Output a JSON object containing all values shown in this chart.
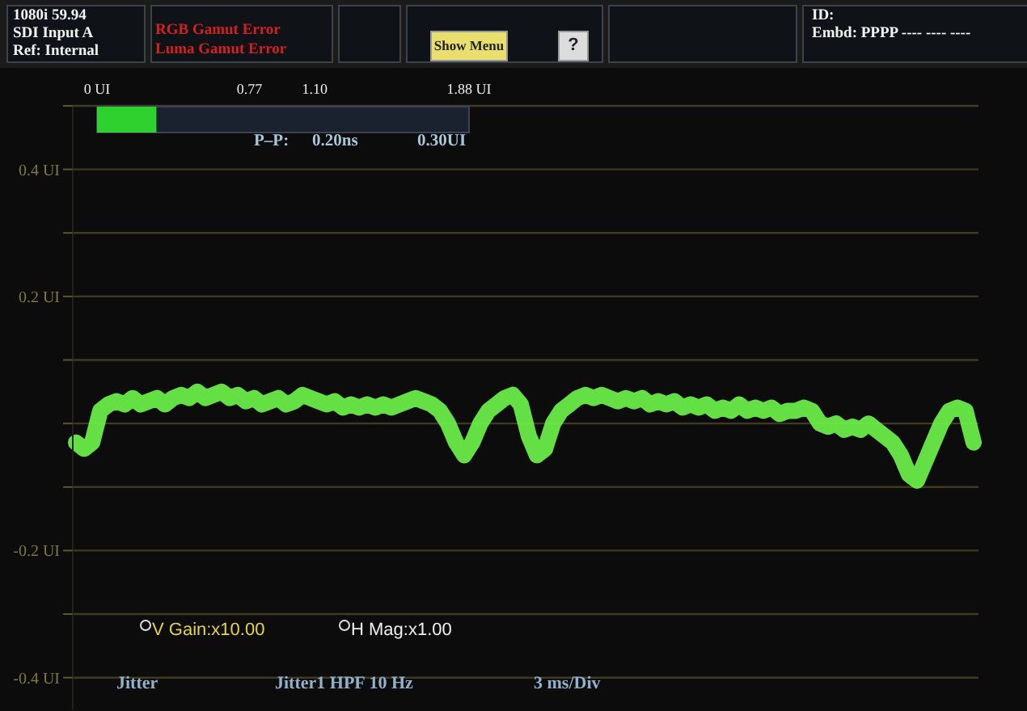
{
  "chart_data": [
    {
      "type": "bar",
      "orientation": "horizontal",
      "categories": [
        null
      ],
      "values": [
        0.3
      ],
      "color": "#2fd12f",
      "xlim": [
        0,
        1.88
      ],
      "xticks": [
        {
          "value": 0,
          "label": "0 UI"
        },
        0.77,
        {
          "value": 1.1,
          "label": "1.10"
        },
        {
          "value": 1.88,
          "label": "1.88 UI"
        }
      ],
      "tick_labels": "x",
      "annotations": [
        "P–P:",
        "0.20ns",
        "0.30UI"
      ]
    },
    {
      "type": "line",
      "categories": [
        null,
        null,
        null,
        null,
        null,
        null,
        null,
        null,
        null,
        null,
        null,
        null,
        null,
        null,
        null,
        null,
        null,
        null,
        null,
        null,
        null,
        null,
        null,
        null,
        null,
        null,
        null,
        null,
        null,
        null,
        null,
        null,
        null,
        null,
        null,
        null,
        null,
        null,
        null,
        null,
        null,
        null,
        null,
        null,
        null,
        null,
        null,
        null,
        null,
        null,
        null,
        null,
        null,
        null,
        null,
        null,
        null,
        null,
        null,
        null,
        null,
        null,
        null,
        null,
        null,
        null,
        null,
        null,
        null,
        null,
        null,
        null,
        null,
        null,
        null,
        null,
        null,
        null,
        null,
        null,
        null,
        null,
        null,
        null,
        null,
        null,
        null,
        null,
        null,
        null,
        null,
        null,
        null,
        null,
        null,
        null,
        null,
        null,
        null,
        null,
        null,
        null,
        null,
        null,
        null,
        null,
        null,
        null,
        null,
        null,
        null,
        null
      ],
      "series": [
        {
          "color": "#6cf24a",
          "values": [
            -0.03,
            -0.04,
            -0.03,
            0.02,
            0.03,
            0.035,
            0.03,
            0.04,
            0.03,
            0.035,
            0.04,
            0.03,
            0.04,
            0.045,
            0.04,
            0.05,
            0.04,
            0.045,
            0.05,
            0.04,
            0.045,
            0.035,
            0.04,
            0.03,
            0.035,
            0.04,
            0.03,
            0.035,
            0.045,
            0.04,
            0.035,
            0.03,
            0.035,
            0.025,
            0.03,
            0.025,
            0.03,
            0.025,
            0.03,
            0.025,
            0.03,
            0.035,
            0.04,
            0.035,
            0.03,
            0.02,
            0,
            -0.03,
            -0.05,
            -0.03,
            0,
            0.02,
            0.03,
            0.04,
            0.045,
            0.03,
            -0.02,
            -0.05,
            -0.04,
            0,
            0.02,
            0.03,
            0.04,
            0.045,
            0.04,
            0.045,
            0.04,
            0.035,
            0.04,
            0.035,
            0.04,
            0.03,
            0.035,
            0.03,
            0.035,
            0.025,
            0.03,
            0.025,
            0.03,
            0.02,
            0.025,
            0.02,
            0.03,
            0.02,
            0.025,
            0.02,
            0.025,
            0.015,
            0.02,
            0.02,
            0.025,
            0.02,
            0,
            -0.005,
            0,
            -0.01,
            -0.005,
            -0.01,
            0,
            -0.01,
            -0.02,
            -0.03,
            -0.05,
            -0.08,
            -0.09,
            -0.06,
            -0.03,
            0,
            0.02,
            0.025,
            0.02,
            -0.03
          ]
        }
      ],
      "ylim": [
        -0.45,
        0.5
      ],
      "yticks": [
        {
          "value": 0.5,
          "label": null
        },
        {
          "value": 0.4,
          "label": "0.4 UI"
        },
        {
          "value": 0.3,
          "label": null
        },
        {
          "value": 0.2,
          "label": "0.2 UI"
        },
        {
          "value": 0.1,
          "label": null
        },
        {
          "value": 0,
          "label": null
        },
        {
          "value": -0.1,
          "label": null
        },
        {
          "value": -0.2,
          "label": "-0.2 UI"
        },
        {
          "value": -0.3,
          "label": null
        },
        {
          "value": -0.4,
          "label": "-0.4 UI"
        }
      ],
      "grid": "y",
      "tick_labels": "y",
      "marker": "none",
      "annotations": [
        "1080i 59.94",
        "SDI Input A",
        "Ref: Internal",
        "RGB Gamut Error",
        "Luma Gamut Error",
        "Show Menu",
        "?",
        "ID:",
        "Embd: PPPP ---- ---- ----",
        "V Gain:x10.00",
        "H Mag:x1.00",
        "Jitter",
        "Jitter1 HPF 10 Hz",
        "3 ms/Div"
      ]
    }
  ]
}
